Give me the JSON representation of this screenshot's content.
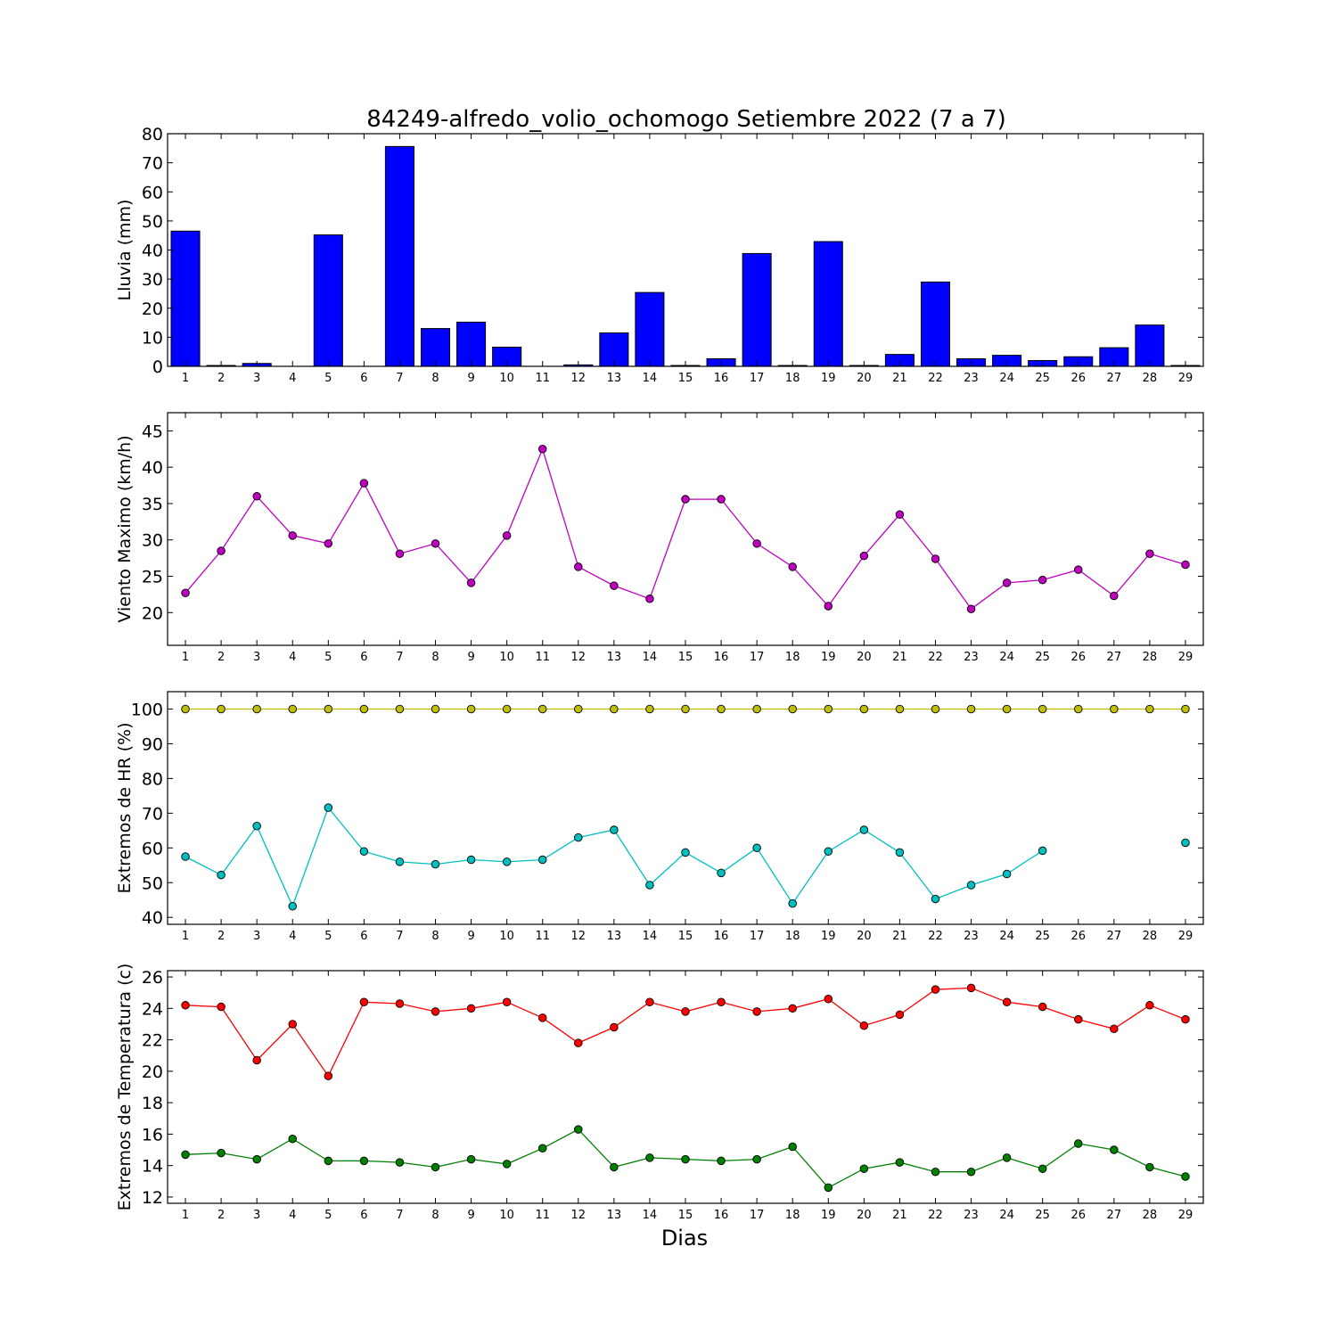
{
  "title": "84249-alfredo_volio_ochomogo Setiembre 2022  (7 a 7)",
  "xlabel": "Dias",
  "chart_data": [
    {
      "type": "bar",
      "ylabel": "Lluvia (mm)",
      "ylim": [
        0,
        80
      ],
      "yticks": [
        0,
        10,
        20,
        30,
        40,
        50,
        60,
        70,
        80
      ],
      "xlim": [
        0.5,
        29.5
      ],
      "x": [
        1,
        2,
        3,
        4,
        5,
        6,
        7,
        8,
        9,
        10,
        11,
        12,
        13,
        14,
        15,
        16,
        17,
        18,
        19,
        20,
        21,
        22,
        23,
        24,
        25,
        26,
        27,
        28,
        29
      ],
      "series": [
        {
          "color": "#0000ff",
          "values": [
            46.5,
            0.3,
            1.0,
            0,
            45.2,
            0,
            75.6,
            13.0,
            15.2,
            6.6,
            0,
            0.5,
            11.5,
            25.4,
            0.3,
            2.6,
            38.8,
            0.3,
            42.9,
            0.3,
            4.1,
            29.0,
            2.6,
            3.8,
            2.0,
            3.3,
            6.4,
            14.2,
            0.3
          ]
        }
      ]
    },
    {
      "type": "line",
      "ylabel": "Viento Maximo (km/h)",
      "ylim": [
        15.5,
        47.5
      ],
      "yticks": [
        20,
        25,
        30,
        35,
        40,
        45
      ],
      "xlim": [
        0.5,
        29.5
      ],
      "x": [
        1,
        2,
        3,
        4,
        5,
        6,
        7,
        8,
        9,
        10,
        11,
        12,
        13,
        14,
        15,
        16,
        17,
        18,
        19,
        20,
        21,
        22,
        23,
        24,
        25,
        26,
        27,
        28,
        29
      ],
      "series": [
        {
          "color": "#bf00bf",
          "values": [
            22.7,
            28.5,
            36.0,
            30.6,
            29.5,
            37.8,
            28.1,
            29.5,
            24.1,
            30.6,
            42.5,
            26.3,
            23.7,
            21.9,
            35.6,
            35.6,
            29.5,
            26.3,
            20.9,
            27.8,
            33.5,
            27.4,
            20.5,
            24.1,
            24.5,
            25.9,
            22.3,
            28.1,
            26.6
          ]
        }
      ]
    },
    {
      "type": "line",
      "ylabel": "Extremos de HR (%)",
      "ylim": [
        38,
        105
      ],
      "yticks": [
        40,
        50,
        60,
        70,
        80,
        90,
        100
      ],
      "xlim": [
        0.5,
        29.5
      ],
      "x": [
        1,
        2,
        3,
        4,
        5,
        6,
        7,
        8,
        9,
        10,
        11,
        12,
        13,
        14,
        15,
        16,
        17,
        18,
        19,
        20,
        21,
        22,
        23,
        24,
        25,
        26,
        27,
        28,
        29
      ],
      "series": [
        {
          "color": "#bfbf00",
          "values": [
            100,
            100,
            100,
            100,
            100,
            100,
            100,
            100,
            100,
            100,
            100,
            100,
            100,
            100,
            100,
            100,
            100,
            100,
            100,
            100,
            100,
            100,
            100,
            100,
            100,
            100,
            100,
            100,
            100
          ]
        },
        {
          "color": "#00bfbf",
          "values": [
            57.5,
            52.2,
            66.3,
            43.2,
            71.6,
            59.0,
            56.0,
            55.3,
            56.6,
            56.0,
            56.6,
            63.0,
            65.2,
            49.3,
            58.7,
            52.8,
            60.0,
            44.0,
            59.0,
            65.2,
            58.7,
            45.3,
            49.3,
            52.5,
            59.2,
            null,
            null,
            null,
            61.5
          ]
        }
      ]
    },
    {
      "type": "line",
      "ylabel": "Extremos de Temperatura (c)",
      "ylim": [
        11.6,
        26.4
      ],
      "yticks": [
        12,
        14,
        16,
        18,
        20,
        22,
        24,
        26
      ],
      "xlim": [
        0.5,
        29.5
      ],
      "x": [
        1,
        2,
        3,
        4,
        5,
        6,
        7,
        8,
        9,
        10,
        11,
        12,
        13,
        14,
        15,
        16,
        17,
        18,
        19,
        20,
        21,
        22,
        23,
        24,
        25,
        26,
        27,
        28,
        29
      ],
      "series": [
        {
          "color": "#ff0000",
          "values": [
            24.2,
            24.1,
            20.7,
            23.0,
            19.7,
            24.4,
            24.3,
            23.8,
            24.0,
            24.4,
            23.4,
            21.8,
            22.8,
            24.4,
            23.8,
            24.4,
            23.8,
            24.0,
            24.6,
            22.9,
            23.6,
            25.2,
            25.3,
            24.4,
            24.1,
            23.3,
            22.7,
            24.2,
            23.3
          ]
        },
        {
          "color": "#008000",
          "values": [
            14.7,
            14.8,
            14.4,
            15.7,
            14.3,
            14.3,
            14.2,
            13.9,
            14.4,
            14.1,
            15.1,
            16.3,
            13.9,
            14.5,
            14.4,
            14.3,
            14.4,
            15.2,
            12.6,
            13.8,
            14.2,
            13.6,
            13.6,
            14.5,
            13.8,
            15.4,
            15.0,
            13.9,
            13.3
          ]
        }
      ]
    }
  ]
}
